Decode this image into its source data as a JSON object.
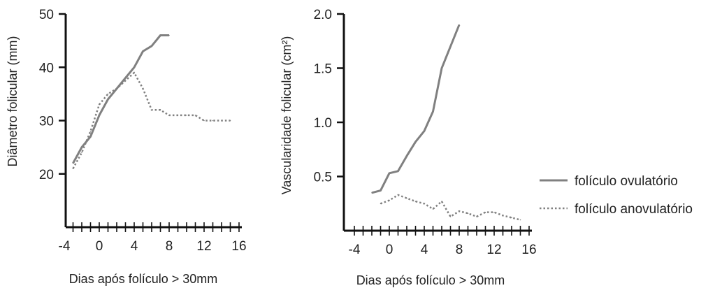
{
  "chart_data": [
    {
      "type": "line",
      "title": "",
      "xlabel": "Dias após folículo > 30mm",
      "ylabel": "Diâmetro folicular (mm)",
      "xlim": [
        -4,
        16
      ],
      "ylim": [
        10,
        50
      ],
      "x_ticks": [
        -4,
        0,
        4,
        8,
        12,
        16
      ],
      "y_ticks": [
        20,
        30,
        40,
        50
      ],
      "grid": false,
      "series": [
        {
          "name": "folículo ovulatório",
          "style": "solid",
          "color": "#808080",
          "x": [
            -3,
            -2,
            -1,
            0,
            1,
            2,
            3,
            4,
            5,
            6,
            7,
            8
          ],
          "y": [
            22,
            25,
            27,
            31,
            34,
            36,
            38,
            40,
            43,
            44,
            46,
            46
          ]
        },
        {
          "name": "folículo anovulatório",
          "style": "dotted",
          "color": "#808080",
          "x": [
            -3,
            -2,
            -1,
            0,
            1,
            2,
            3,
            4,
            5,
            6,
            7,
            8,
            9,
            10,
            11,
            12,
            13,
            14,
            15
          ],
          "y": [
            21,
            24,
            28,
            33,
            35,
            36,
            37.5,
            39,
            36,
            32,
            32,
            31,
            31,
            31,
            31,
            30,
            30,
            30,
            30
          ]
        }
      ]
    },
    {
      "type": "line",
      "title": "",
      "xlabel": "Dias após folículo > 30mm",
      "ylabel": "Vascularidade folicular (cm²)",
      "xlim": [
        -4,
        16
      ],
      "ylim": [
        0,
        2.0
      ],
      "x_ticks": [
        -4,
        0,
        4,
        8,
        12,
        16
      ],
      "y_ticks": [
        0.5,
        1.0,
        1.5,
        2.0
      ],
      "grid": false,
      "series": [
        {
          "name": "folículo ovulatório",
          "style": "solid",
          "color": "#808080",
          "x": [
            -2,
            -1,
            0,
            1,
            2,
            3,
            4,
            5,
            6,
            7,
            8
          ],
          "y": [
            0.35,
            0.37,
            0.53,
            0.55,
            0.69,
            0.82,
            0.92,
            1.1,
            1.5,
            1.7,
            1.9
          ]
        },
        {
          "name": "folículo anovulatório",
          "style": "dotted",
          "color": "#808080",
          "x": [
            -1,
            0,
            1,
            2,
            3,
            4,
            5,
            6,
            7,
            8,
            9,
            10,
            11,
            12,
            13,
            14,
            15
          ],
          "y": [
            0.25,
            0.28,
            0.33,
            0.3,
            0.27,
            0.25,
            0.2,
            0.27,
            0.13,
            0.18,
            0.16,
            0.13,
            0.17,
            0.17,
            0.14,
            0.12,
            0.1
          ]
        }
      ]
    }
  ],
  "legend": {
    "items": [
      {
        "label": "folículo ovulatório",
        "style": "solid"
      },
      {
        "label": "folículo anovulatório",
        "style": "dotted"
      }
    ],
    "placement": "right"
  }
}
